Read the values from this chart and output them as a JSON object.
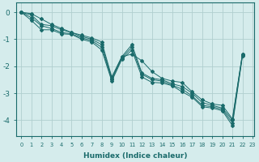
{
  "xlabel": "Humidex (Indice chaleur)",
  "background_color": "#d5ecec",
  "grid_color": "#b0cfcf",
  "line_color": "#1a6b6b",
  "xlim": [
    -0.5,
    23.2
  ],
  "ylim": [
    -4.6,
    0.35
  ],
  "yticks": [
    0,
    -1,
    -2,
    -3,
    -4
  ],
  "xticks": [
    0,
    1,
    2,
    3,
    4,
    5,
    6,
    7,
    8,
    9,
    10,
    11,
    12,
    13,
    14,
    15,
    16,
    17,
    18,
    19,
    20,
    21,
    22,
    23
  ],
  "lines_y": [
    [
      0,
      -0.05,
      -0.25,
      -0.45,
      -0.6,
      -0.75,
      -0.85,
      -0.95,
      -1.1,
      -2.4,
      -1.65,
      -1.55,
      -1.8,
      -2.2,
      -2.45,
      -2.55,
      -2.6,
      -2.95,
      -3.25,
      -3.4,
      -3.45,
      -3.95,
      -1.55
    ],
    [
      0,
      -0.1,
      -0.45,
      -0.5,
      -0.65,
      -0.75,
      -0.9,
      -1.0,
      -1.2,
      -2.45,
      -1.65,
      -1.2,
      -2.25,
      -2.45,
      -2.5,
      -2.65,
      -2.75,
      -3.0,
      -3.35,
      -3.45,
      -3.55,
      -4.0,
      -1.55
    ],
    [
      0,
      -0.2,
      -0.5,
      -0.6,
      -0.75,
      -0.8,
      -0.95,
      -1.05,
      -1.3,
      -2.5,
      -1.7,
      -1.3,
      -2.3,
      -2.5,
      -2.55,
      -2.7,
      -2.85,
      -3.1,
      -3.45,
      -3.5,
      -3.6,
      -4.1,
      -1.6
    ],
    [
      0,
      -0.3,
      -0.65,
      -0.65,
      -0.8,
      -0.82,
      -1.0,
      -1.1,
      -1.4,
      -2.55,
      -1.75,
      -1.4,
      -2.4,
      -2.6,
      -2.62,
      -2.72,
      -2.95,
      -3.15,
      -3.5,
      -3.55,
      -3.65,
      -4.2,
      -1.62
    ]
  ]
}
